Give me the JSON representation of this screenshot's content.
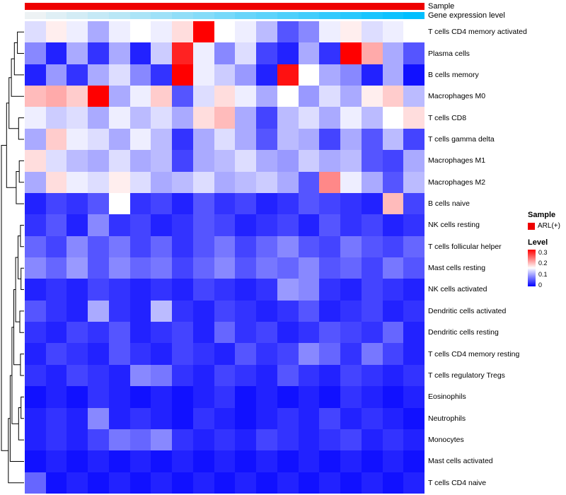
{
  "annotations": {
    "sample_label": "Sample",
    "expression_label": "Gene expression level",
    "sample_group": "ARL(+)",
    "sample_color": "#EE0000",
    "expression_color_high": "#EDF2F4",
    "expression_color_low": "#00BFFF",
    "expression_values": [
      1.0,
      0.94,
      0.89,
      0.83,
      0.78,
      0.72,
      0.67,
      0.61,
      0.56,
      0.5,
      0.44,
      0.39,
      0.33,
      0.28,
      0.22,
      0.17,
      0.11,
      0.06,
      0.0
    ]
  },
  "legend": {
    "sample_title": "Sample",
    "sample_items": [
      {
        "label": "ARL(+)",
        "color": "#EE0000"
      }
    ],
    "level_title": "Level",
    "level_ticks": [
      "0.3",
      "0.2",
      "0.1",
      "0"
    ],
    "level_colors": {
      "high": "#FF0000",
      "mid": "#FFFFFF",
      "low": "#0000FF"
    }
  },
  "chart_data": {
    "type": "heatmap",
    "title": "",
    "rows": [
      "T cells CD4 memory activated",
      "Plasma cells",
      "B cells memory",
      "Macrophages M0",
      "T cells CD8",
      "T cells gamma delta",
      "Macrophages M1",
      "Macrophages M2",
      "B cells naive",
      "NK cells resting",
      "T cells follicular helper",
      "Mast cells resting",
      "NK cells activated",
      "Dendritic cells activated",
      "Dendritic cells resting",
      "T cells CD4 memory resting",
      "T cells regulatory Tregs",
      "Eosinophils",
      "Neutrophils",
      "Monocytes",
      "Mast cells activated",
      "T cells CD4 naive"
    ],
    "n_columns": 19,
    "vmin": 0,
    "vmax": 0.3,
    "colorscale": [
      "#0000FF",
      "#FFFFFF",
      "#FF0000"
    ],
    "values": [
      [
        0.13,
        0.16,
        0.14,
        0.1,
        0.14,
        0.15,
        0.14,
        0.17,
        0.3,
        0.15,
        0.14,
        0.11,
        0.05,
        0.08,
        0.14,
        0.16,
        0.13,
        0.14,
        0.15
      ],
      [
        0.08,
        0.02,
        0.1,
        0.03,
        0.1,
        0.02,
        0.12,
        0.28,
        0.14,
        0.08,
        0.13,
        0.04,
        0.02,
        0.1,
        0.03,
        0.3,
        0.2,
        0.1,
        0.05
      ],
      [
        0.02,
        0.09,
        0.03,
        0.1,
        0.13,
        0.08,
        0.03,
        0.3,
        0.14,
        0.12,
        0.09,
        0.02,
        0.29,
        0.15,
        0.1,
        0.08,
        0.02,
        0.1,
        0.01
      ],
      [
        0.19,
        0.2,
        0.18,
        0.3,
        0.1,
        0.14,
        0.18,
        0.05,
        0.13,
        0.17,
        0.14,
        0.1,
        0.15,
        0.09,
        0.13,
        0.1,
        0.16,
        0.18,
        0.11
      ],
      [
        0.14,
        0.12,
        0.13,
        0.1,
        0.14,
        0.11,
        0.13,
        0.1,
        0.17,
        0.19,
        0.1,
        0.04,
        0.11,
        0.13,
        0.1,
        0.14,
        0.11,
        0.15,
        0.17
      ],
      [
        0.1,
        0.18,
        0.14,
        0.13,
        0.1,
        0.14,
        0.11,
        0.03,
        0.1,
        0.13,
        0.1,
        0.05,
        0.11,
        0.1,
        0.04,
        0.1,
        0.05,
        0.11,
        0.04
      ],
      [
        0.17,
        0.13,
        0.11,
        0.1,
        0.13,
        0.1,
        0.11,
        0.04,
        0.1,
        0.11,
        0.13,
        0.1,
        0.09,
        0.12,
        0.1,
        0.11,
        0.05,
        0.04,
        0.1
      ],
      [
        0.1,
        0.17,
        0.14,
        0.13,
        0.16,
        0.13,
        0.1,
        0.11,
        0.13,
        0.1,
        0.11,
        0.12,
        0.1,
        0.05,
        0.22,
        0.14,
        0.1,
        0.05,
        0.11
      ],
      [
        0.02,
        0.04,
        0.03,
        0.05,
        0.15,
        0.03,
        0.04,
        0.02,
        0.05,
        0.03,
        0.04,
        0.02,
        0.03,
        0.05,
        0.04,
        0.03,
        0.02,
        0.19,
        0.04
      ],
      [
        0.03,
        0.05,
        0.02,
        0.08,
        0.03,
        0.04,
        0.02,
        0.03,
        0.05,
        0.04,
        0.02,
        0.03,
        0.04,
        0.02,
        0.05,
        0.03,
        0.04,
        0.02,
        0.03
      ],
      [
        0.06,
        0.04,
        0.08,
        0.05,
        0.07,
        0.04,
        0.06,
        0.03,
        0.05,
        0.07,
        0.04,
        0.06,
        0.08,
        0.05,
        0.04,
        0.07,
        0.05,
        0.04,
        0.06
      ],
      [
        0.08,
        0.06,
        0.09,
        0.05,
        0.08,
        0.06,
        0.07,
        0.04,
        0.06,
        0.08,
        0.05,
        0.07,
        0.06,
        0.08,
        0.05,
        0.06,
        0.04,
        0.07,
        0.05
      ],
      [
        0.02,
        0.03,
        0.02,
        0.04,
        0.03,
        0.02,
        0.03,
        0.02,
        0.04,
        0.03,
        0.02,
        0.03,
        0.09,
        0.08,
        0.03,
        0.02,
        0.04,
        0.03,
        0.02
      ],
      [
        0.05,
        0.03,
        0.02,
        0.1,
        0.03,
        0.02,
        0.11,
        0.03,
        0.02,
        0.04,
        0.03,
        0.02,
        0.03,
        0.05,
        0.02,
        0.03,
        0.04,
        0.02,
        0.03
      ],
      [
        0.03,
        0.02,
        0.04,
        0.03,
        0.05,
        0.02,
        0.03,
        0.04,
        0.02,
        0.06,
        0.03,
        0.04,
        0.02,
        0.03,
        0.05,
        0.04,
        0.03,
        0.06,
        0.02
      ],
      [
        0.02,
        0.04,
        0.03,
        0.02,
        0.05,
        0.03,
        0.02,
        0.04,
        0.03,
        0.02,
        0.05,
        0.03,
        0.04,
        0.08,
        0.06,
        0.03,
        0.07,
        0.04,
        0.02
      ],
      [
        0.03,
        0.02,
        0.04,
        0.03,
        0.02,
        0.08,
        0.07,
        0.03,
        0.02,
        0.04,
        0.03,
        0.02,
        0.05,
        0.03,
        0.02,
        0.04,
        0.03,
        0.02,
        0.03
      ],
      [
        0.01,
        0.02,
        0.01,
        0.03,
        0.02,
        0.01,
        0.02,
        0.01,
        0.02,
        0.03,
        0.01,
        0.02,
        0.01,
        0.02,
        0.01,
        0.03,
        0.02,
        0.01,
        0.02
      ],
      [
        0.02,
        0.03,
        0.02,
        0.08,
        0.02,
        0.03,
        0.02,
        0.01,
        0.03,
        0.02,
        0.01,
        0.02,
        0.03,
        0.02,
        0.04,
        0.02,
        0.03,
        0.02,
        0.01
      ],
      [
        0.02,
        0.03,
        0.02,
        0.04,
        0.07,
        0.06,
        0.08,
        0.03,
        0.02,
        0.03,
        0.02,
        0.04,
        0.03,
        0.02,
        0.03,
        0.04,
        0.02,
        0.03,
        0.02
      ],
      [
        0.01,
        0.02,
        0.01,
        0.02,
        0.01,
        0.02,
        0.01,
        0.02,
        0.01,
        0.02,
        0.01,
        0.02,
        0.01,
        0.02,
        0.01,
        0.02,
        0.01,
        0.02,
        0.01
      ],
      [
        0.06,
        0.01,
        0.02,
        0.01,
        0.02,
        0.01,
        0.02,
        0.01,
        0.02,
        0.01,
        0.02,
        0.01,
        0.02,
        0.01,
        0.02,
        0.01,
        0.02,
        0.01,
        0.02
      ]
    ]
  },
  "dendrogram": {
    "merges": [
      [
        "L0",
        "L1",
        2.2
      ],
      [
        "M0",
        "L2",
        3.2
      ],
      [
        "M1",
        "L3",
        4.2
      ],
      [
        "L4",
        "L5",
        1.8
      ],
      [
        "M2",
        "M3",
        5.0
      ],
      [
        "L6",
        "L7",
        1.6
      ],
      [
        "M5",
        "L8",
        2.6
      ],
      [
        "M4",
        "M6",
        5.8
      ],
      [
        "L9",
        "L10",
        1.2
      ],
      [
        "L11",
        "L12",
        1.0
      ],
      [
        "M8",
        "M9",
        2.0
      ],
      [
        "L13",
        "L14",
        1.4
      ],
      [
        "M10",
        "M11",
        2.8
      ],
      [
        "L15",
        "L16",
        1.2
      ],
      [
        "M12",
        "M13",
        3.4
      ],
      [
        "L17",
        "L18",
        1.0
      ],
      [
        "M15",
        "L19",
        1.8
      ],
      [
        "M14",
        "M16",
        4.0
      ],
      [
        "M17",
        "L20",
        4.6
      ],
      [
        "M18",
        "L21",
        5.2
      ],
      [
        "M7",
        "M19",
        7.5
      ]
    ]
  }
}
